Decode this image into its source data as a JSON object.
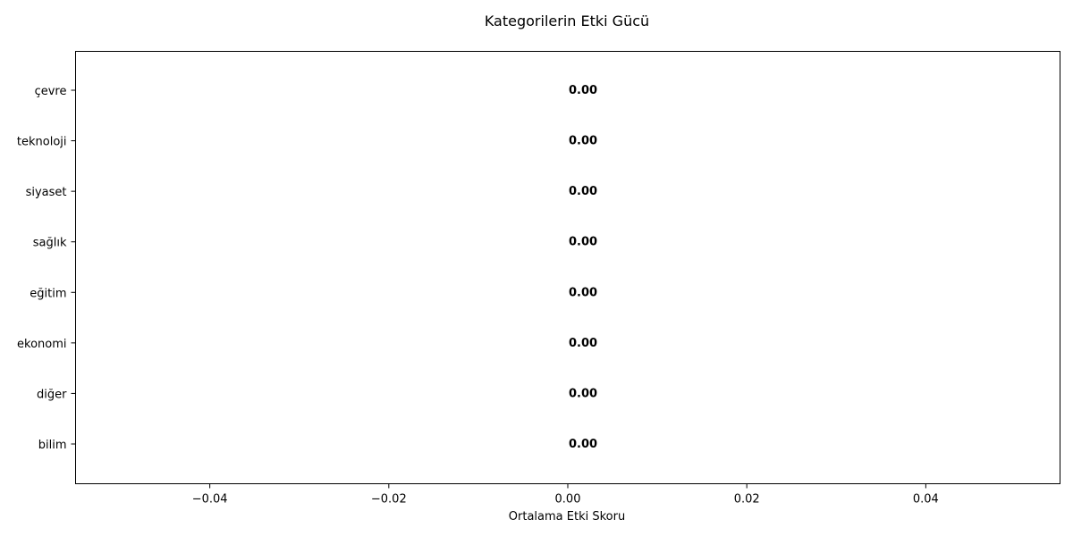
{
  "chart_data": {
    "type": "bar",
    "orientation": "horizontal",
    "title": "Kategorilerin Etki Gücü",
    "xlabel": "Ortalama Etki Skoru",
    "ylabel": "",
    "categories": [
      "çevre",
      "teknoloji",
      "siyaset",
      "sağlık",
      "eğitim",
      "ekonomi",
      "diğer",
      "bilim"
    ],
    "values": [
      0,
      0,
      0,
      0,
      0,
      0,
      0,
      0
    ],
    "value_labels": [
      "0.00",
      "0.00",
      "0.00",
      "0.00",
      "0.00",
      "0.00",
      "0.00",
      "0.00"
    ],
    "xlim": [
      -0.055,
      0.055
    ],
    "xticks": [
      -0.04,
      -0.02,
      0.0,
      0.02,
      0.04
    ],
    "xtick_labels": [
      "−0.04",
      "−0.02",
      "0.00",
      "0.02",
      "0.04"
    ],
    "grid": false,
    "bar_color": "#4c72b0"
  }
}
